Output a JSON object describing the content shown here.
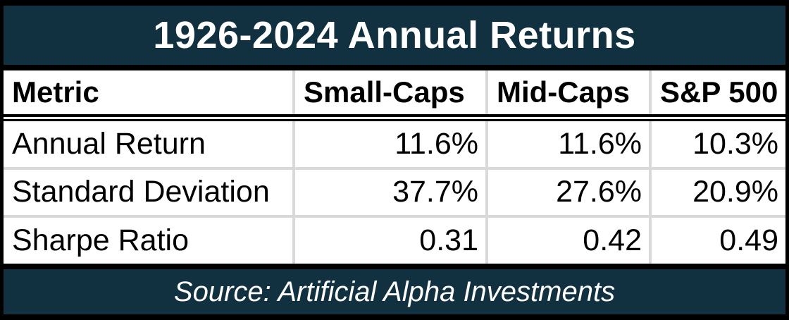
{
  "title": "1926-2024 Annual Returns",
  "source_note": "Source: Artificial Alpha Investments",
  "colors": {
    "navy": "#113040",
    "gridline": "#d9d9d9",
    "text_dark": "#000000",
    "text_light": "#ffffff"
  },
  "chart_data": {
    "type": "table",
    "title": "1926-2024 Annual Returns",
    "columns": [
      "Metric",
      "Small-Caps",
      "Mid-Caps",
      "S&P 500"
    ],
    "rows": [
      [
        "Annual Return",
        "11.6%",
        "11.6%",
        "10.3%"
      ],
      [
        "Standard Deviation",
        "37.7%",
        "27.6%",
        "20.9%"
      ],
      [
        "Sharpe Ratio",
        "0.31",
        "0.42",
        "0.49"
      ]
    ],
    "source": "Source: Artificial Alpha Investments",
    "layout": {
      "header_bold": true,
      "value_alignment": "right",
      "label_alignment": "left",
      "gridlines": "light-gray",
      "header_separator": "double-black-rule"
    }
  }
}
